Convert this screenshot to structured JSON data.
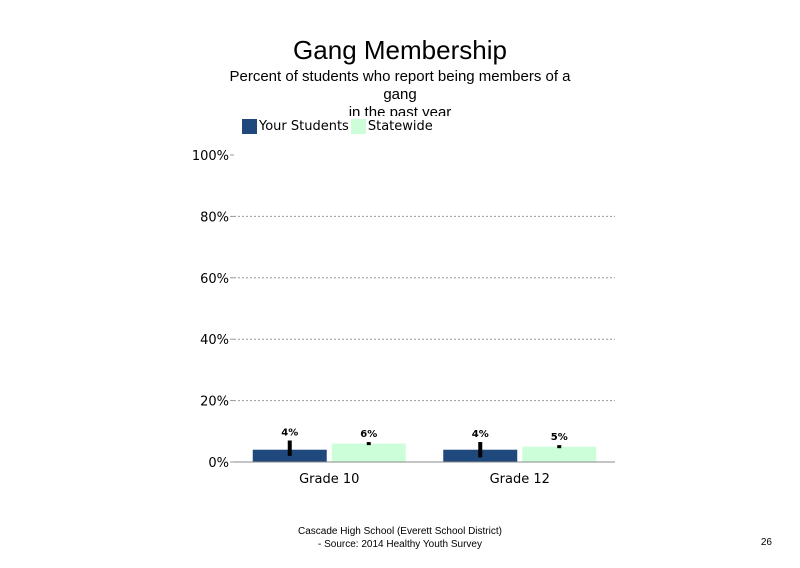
{
  "chart_data": {
    "type": "bar",
    "title": "Gang Membership",
    "subtitle_lines": [
      "Percent of students  who report being members  of a",
      "gang",
      "in the past  year"
    ],
    "categories": [
      "Grade 10",
      "Grade 12"
    ],
    "series": [
      {
        "name": "Your Students",
        "color": "#1f497d",
        "values": [
          4,
          4
        ],
        "labels": [
          "4%",
          "4%"
        ],
        "error": [
          [
            2,
            7
          ],
          [
            1.5,
            6.5
          ]
        ]
      },
      {
        "name": "Statewide",
        "color": "#ccffd9",
        "values": [
          6,
          5
        ],
        "labels": [
          "6%",
          "5%"
        ],
        "error": [
          [
            5.5,
            6.5
          ],
          [
            4.5,
            5.5
          ]
        ]
      }
    ],
    "ylim": [
      0,
      100
    ],
    "yticks": [
      0,
      20,
      40,
      60,
      80,
      100
    ],
    "ytick_labels": [
      "0%",
      "20%",
      "40%",
      "60%",
      "80%",
      "100%"
    ],
    "grid": true,
    "legend": "top-left"
  },
  "footer": {
    "line1": "Cascade High  School (Everett School District)",
    "line2": "- Source: 2014 Healthy  Youth Survey"
  },
  "page_number": "26"
}
